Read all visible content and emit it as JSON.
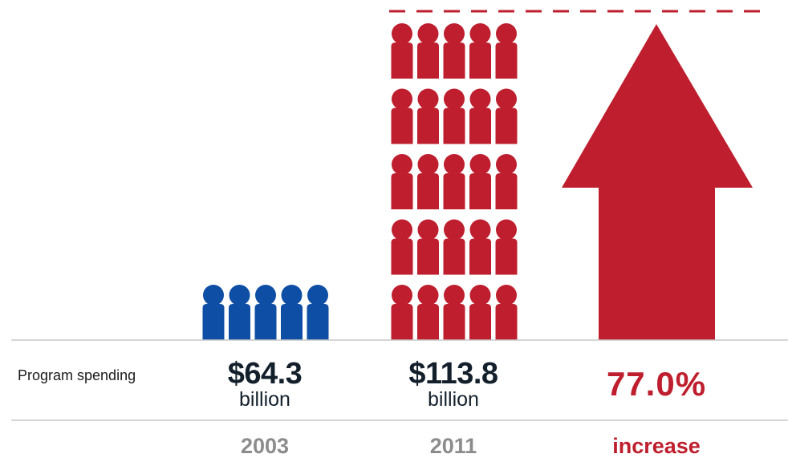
{
  "chart_data": {
    "type": "pictograph",
    "row_label": "Program spending",
    "series": [
      {
        "year": "2003",
        "amount": "$64.3",
        "unit": "billion",
        "value": 64.3,
        "icons": 5,
        "color": "#0f4ea5"
      },
      {
        "year": "2011",
        "amount": "$113.8",
        "unit": "billion",
        "value": 113.8,
        "icons": 25,
        "color": "#be1e2d"
      }
    ],
    "change": {
      "value": "77.0%",
      "label": "increase",
      "color": "#be1e2d"
    },
    "colors": {
      "amount_text": "#13202c",
      "year_text": "#8c8c8c",
      "rule": "#c8c8c8"
    }
  }
}
